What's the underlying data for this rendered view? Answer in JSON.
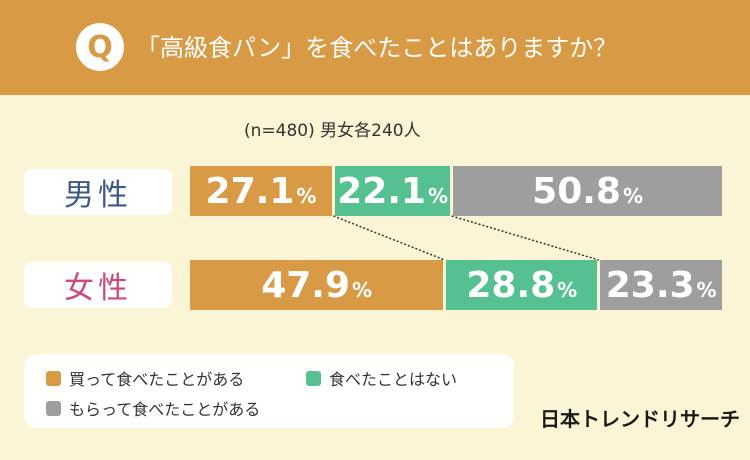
{
  "header": {
    "badge": "Q",
    "question": "「高級食パン」を食べたことはありますか？"
  },
  "sample_note": "(n=480) 男女各240人",
  "percent_symbol": "%",
  "logo": "日本トレンドリサーチ",
  "legend": [
    {
      "label": "買って食べたことがある",
      "color": "#d89a45"
    },
    {
      "label": "食べたことはない",
      "color": "#55c191"
    },
    {
      "label": "もらって食べたことがある",
      "color": "#9e9e9e"
    }
  ],
  "chart_data": {
    "type": "bar",
    "orientation": "horizontal",
    "stacked": "100%",
    "title": "「高級食パン」を食べたことはありますか？",
    "categories": [
      "男性",
      "女性"
    ],
    "series": [
      {
        "name": "買って食べたことがある",
        "color": "#d89a45",
        "values": [
          27.1,
          47.9
        ],
        "labels": [
          "27.1",
          "47.9"
        ]
      },
      {
        "name": "食べたことはない",
        "color": "#55c191",
        "values": [
          22.1,
          28.8
        ],
        "labels": [
          "22.1",
          "28.8"
        ]
      },
      {
        "name": "もらって食べたことがある",
        "color": "#9e9e9e",
        "values": [
          50.8,
          23.3
        ],
        "labels": [
          "50.8",
          "23.3"
        ]
      }
    ],
    "xlim": [
      0,
      100
    ],
    "legend_position": "bottom-left"
  }
}
